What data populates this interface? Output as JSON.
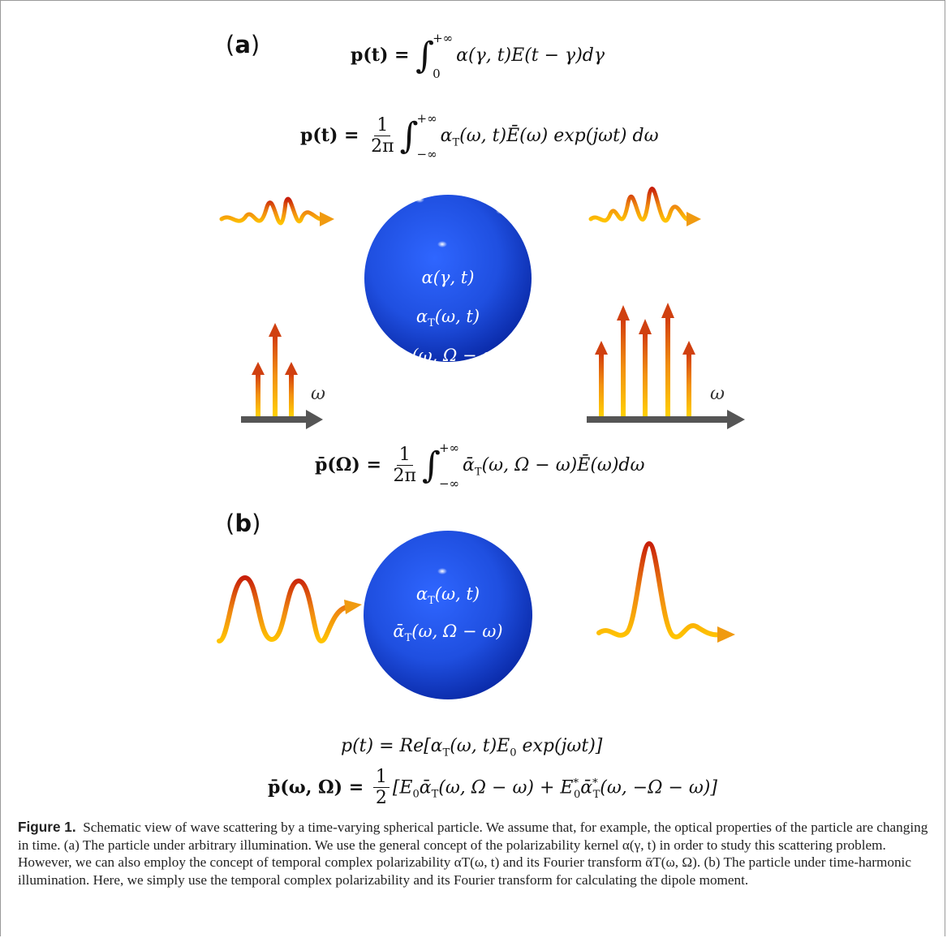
{
  "panels": {
    "a_label": "a",
    "b_label": "b"
  },
  "equations": {
    "a_top_lhs": "p(t) = ",
    "a_top_rhs": "α(γ, t)E(t − γ)dγ",
    "a_top_lower": "0",
    "a_top_upper": "+∞",
    "a_second_lhs": "p(t) = ",
    "a_second_rhs": "α",
    "a_second_tail": "(ω, t)Ē(ω) exp(jωt) dω",
    "a_second_lower": "−∞",
    "a_second_upper": "+∞",
    "a_bottom_lhs": "p̄(Ω) = ",
    "a_bottom_rhs": "ᾱ",
    "a_bottom_tail": "(ω, Ω − ω)Ē(ω)dω",
    "a_bottom_lower": "−∞",
    "a_bottom_upper": "+∞",
    "frac_num": "1",
    "frac_den": "2π",
    "frac_den_b": "2",
    "sub_T": "T",
    "b_line1": "p(t) = Re[α",
    "b_line1_tail": "(ω, t)E",
    "b_line1_sub0": "0",
    "b_line1_end": " exp(jωt)]",
    "b_line2_lhs": "p̄(ω, Ω) = ",
    "b_line2_a": "[E",
    "b_line2_b": "ᾱ",
    "b_line2_c": "(ω, Ω − ω) + E",
    "b_line2_d": "ᾱ",
    "b_line2_e": "(ω, −Ω − ω)]",
    "star": "*"
  },
  "sphere_a": {
    "line1": "α(γ, t)",
    "line2_pre": "α",
    "line2_post": "(ω, t)",
    "line3_pre": "ᾱ",
    "line3_post": "(ω, Ω − ω)"
  },
  "sphere_b": {
    "line1_pre": "α",
    "line1_post": "(ω, t)",
    "line2_pre": "ᾱ",
    "line2_post": "(ω, Ω − ω)"
  },
  "spectrum": {
    "axis_label": "ω",
    "input_arrows": 3,
    "output_arrows": 5
  },
  "colors": {
    "sphere_base": "#1f4fe0",
    "sphere_dark": "#0a2aa8",
    "wave_top": "#c8200a",
    "wave_bottom": "#ffb400",
    "axis": "#555555"
  },
  "caption": {
    "label": "Figure 1.",
    "text": "Schematic view of wave scattering by a time-varying spherical particle. We assume that, for example, the optical properties of the particle are changing in time. (a) The particle under arbitrary illumination. We use the general concept of the polarizability kernel α(γ, t) in order to study this scattering problem. However, we can also employ the concept of temporal complex polarizability αT(ω, t) and its Fourier transform ᾱT(ω, Ω). (b) The particle under time-harmonic illumination. Here, we simply use the temporal complex polarizability and its Fourier transform for calculating the dipole moment."
  }
}
